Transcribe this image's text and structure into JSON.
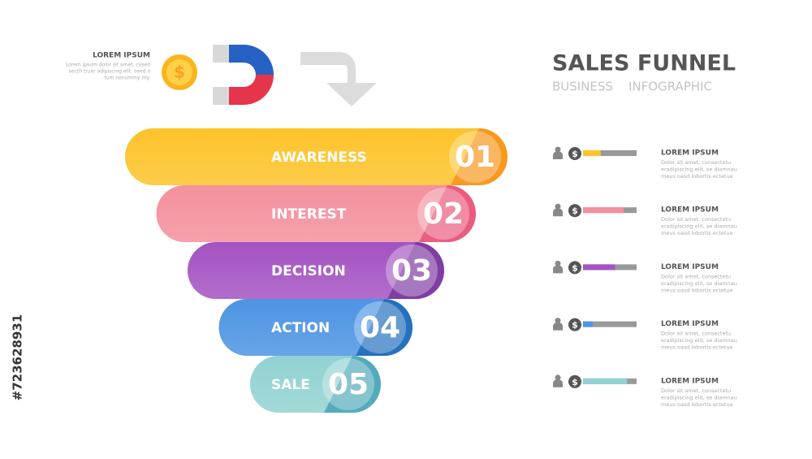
{
  "header": {
    "title": "SALES FUNNEL",
    "subtitle": [
      "BUSINESS",
      "INFOGRAPHIC"
    ]
  },
  "intro": {
    "heading": "LOREM IPSUM",
    "lines": [
      "Lorem ipsum dolor sit amet, cosed",
      "secth truer adipiscing elit. seed a",
      "tum nonummy my."
    ]
  },
  "watermark": "#723628931",
  "stages": [
    {
      "label": "AWARENESS",
      "number": "01",
      "color": "#fdc32a",
      "accent": "#f7941d",
      "progress": 33
    },
    {
      "label": "INTEREST",
      "number": "02",
      "color": "#f4909e",
      "accent": "#e9557a",
      "progress": 76
    },
    {
      "label": "DECISION",
      "number": "03",
      "color": "#a453c2",
      "accent": "#7b3aa0",
      "progress": 60
    },
    {
      "label": "ACTION",
      "number": "04",
      "color": "#4d94e3",
      "accent": "#1f6db8",
      "progress": 18
    },
    {
      "label": "SALE",
      "number": "05",
      "color": "#92d2d2",
      "accent": "#4aa6b8",
      "progress": 82
    }
  ],
  "details": [
    {
      "heading": "LOREM IPSUM",
      "lines": [
        "Dolor sit amet, consectetu",
        "eradipiscing elit, se diamnau",
        "meus oasd lobortis ectetue"
      ]
    },
    {
      "heading": "LOREM IPSUM",
      "lines": [
        "Dolor sit amet, consectetu",
        "eradipiscing elit, se diamnau",
        "meus oasd lobortis ectetue"
      ]
    },
    {
      "heading": "LOREM IPSUM",
      "lines": [
        "Dolor sit amet, consectetu",
        "eradipiscing elit, se diamnau",
        "meus oasd lobortis ectetue"
      ]
    },
    {
      "heading": "LOREM IPSUM",
      "lines": [
        "Dolor sit amet, consectetu",
        "eradipiscing elit, se diamnau",
        "meus oasd lobortis ectetue"
      ]
    },
    {
      "heading": "LOREM IPSUM",
      "lines": [
        "Dolor sit amet, consectetu",
        "eradipiscing elit, se diamnau",
        "meus oasd lobortis ectetue"
      ]
    }
  ]
}
